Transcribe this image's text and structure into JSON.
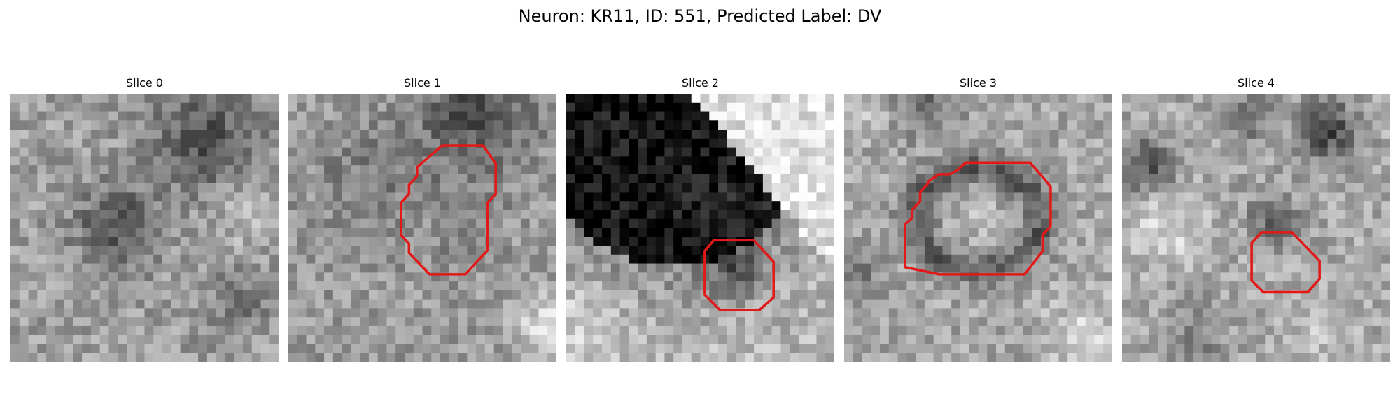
{
  "figure": {
    "title": "Neuron: KR11, ID: 551, Predicted Label: DV"
  },
  "panels": [
    {
      "label": "Slice 0",
      "roi": false,
      "roi_color": "#e11919"
    },
    {
      "label": "Slice 1",
      "roi": true,
      "roi_color": "#e11919"
    },
    {
      "label": "Slice 2",
      "roi": true,
      "roi_color": "#e11919"
    },
    {
      "label": "Slice 3",
      "roi": true,
      "roi_color": "#e11919"
    },
    {
      "label": "Slice 4",
      "roi": true,
      "roi_color": "#e11919"
    }
  ],
  "colors": {
    "background": "#ffffff",
    "image_colormap": "grayscale",
    "roi_outline": "#e11919"
  }
}
